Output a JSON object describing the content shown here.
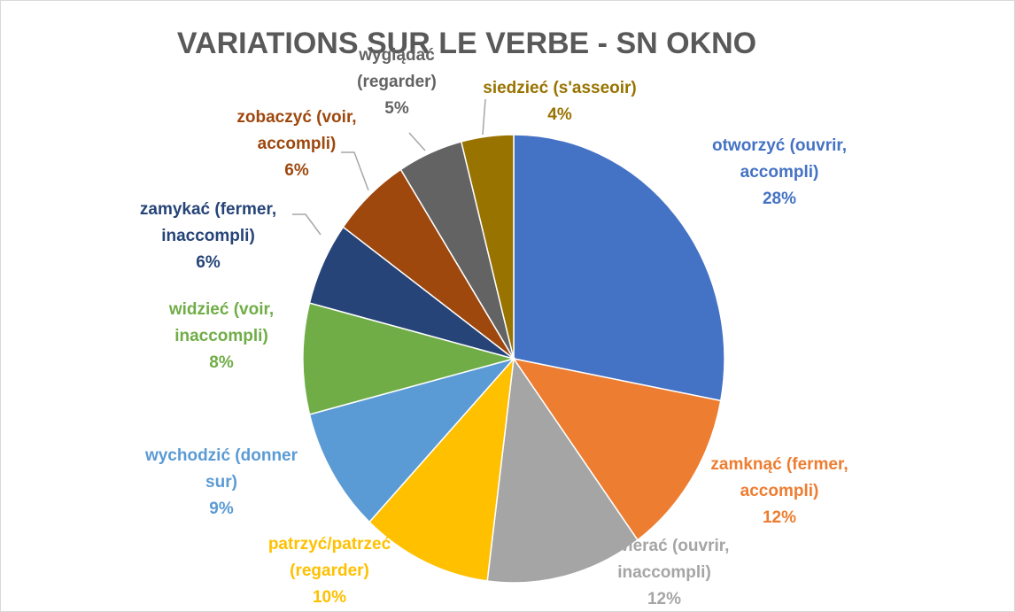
{
  "chart_data": {
    "type": "pie",
    "title": "VARIATIONS SUR LE VERBE -  SN OKNO",
    "categories": [
      "otworzyć (ouvrir, accompli)",
      "zamknąć (fermer, accompli)",
      "otwierać (ouvrir, inaccompli)",
      "patrzyć/patrzeć (regarder)",
      "wychodzić (donner sur)",
      "widzieć (voir, inaccompli)",
      "zamykać (fermer, inaccompli)",
      "zobaczyć (voir, accompli)",
      "wyglądać (regarder)",
      "siedzieć (s'asseoir)"
    ],
    "values": [
      28,
      12,
      12,
      10,
      9,
      8,
      6,
      6,
      5,
      4
    ],
    "value_labels": [
      "28%",
      "12%",
      "12%",
      "10%",
      "9%",
      "8%",
      "6%",
      "6%",
      "5%",
      "4%"
    ],
    "colors": [
      "#4472c4",
      "#ed7d31",
      "#a5a5a5",
      "#ffc000",
      "#5b9bd5",
      "#70ad47",
      "#264478",
      "#9e480e",
      "#636363",
      "#997300"
    ]
  }
}
